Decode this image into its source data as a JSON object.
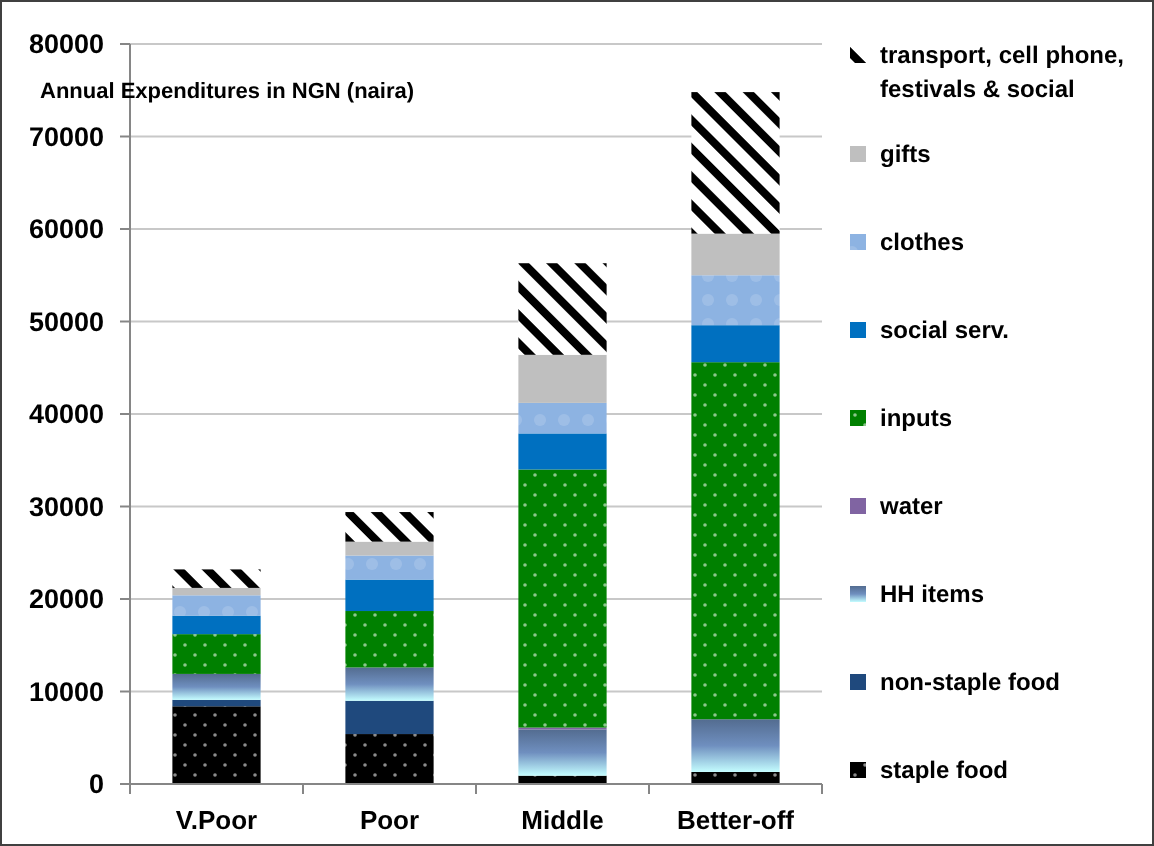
{
  "chart_data": {
    "type": "bar",
    "title": "Annual Expenditures in NGN (naira)",
    "categories": [
      "V.Poor",
      "Poor",
      "Middle",
      "Better-off"
    ],
    "stacked": true,
    "ylim": [
      0,
      80000
    ],
    "yticks": [
      0,
      10000,
      20000,
      30000,
      40000,
      50000,
      60000,
      70000,
      80000
    ],
    "grid": "y",
    "legend": "right",
    "series": [
      {
        "name": "staple food",
        "color": "#000000",
        "values": [
          8400,
          5400,
          900,
          1300
        ]
      },
      {
        "name": "non-staple food",
        "color": "#1f497d",
        "values": [
          700,
          3600,
          null,
          null
        ]
      },
      {
        "name": "HH items",
        "color": "#6f8fbf",
        "values": [
          2800,
          3600,
          5000,
          5700
        ]
      },
      {
        "name": "water",
        "color": "#8064a2",
        "values": [
          null,
          null,
          200,
          null
        ]
      },
      {
        "name": "inputs",
        "color": "#008000",
        "values": [
          4300,
          6100,
          27900,
          38600
        ]
      },
      {
        "name": "social serv.",
        "color": "#0070c0",
        "values": [
          2000,
          3400,
          3900,
          4000
        ]
      },
      {
        "name": "clothes",
        "color": "#8db3e2",
        "values": [
          2200,
          2600,
          3300,
          5400
        ]
      },
      {
        "name": "gifts",
        "color": "#bfbfbf",
        "values": [
          800,
          1500,
          5200,
          4500
        ]
      },
      {
        "name": "transport, cell phone, festivals & social",
        "color": "#000000",
        "values": [
          2000,
          3200,
          9900,
          15300
        ]
      }
    ]
  }
}
